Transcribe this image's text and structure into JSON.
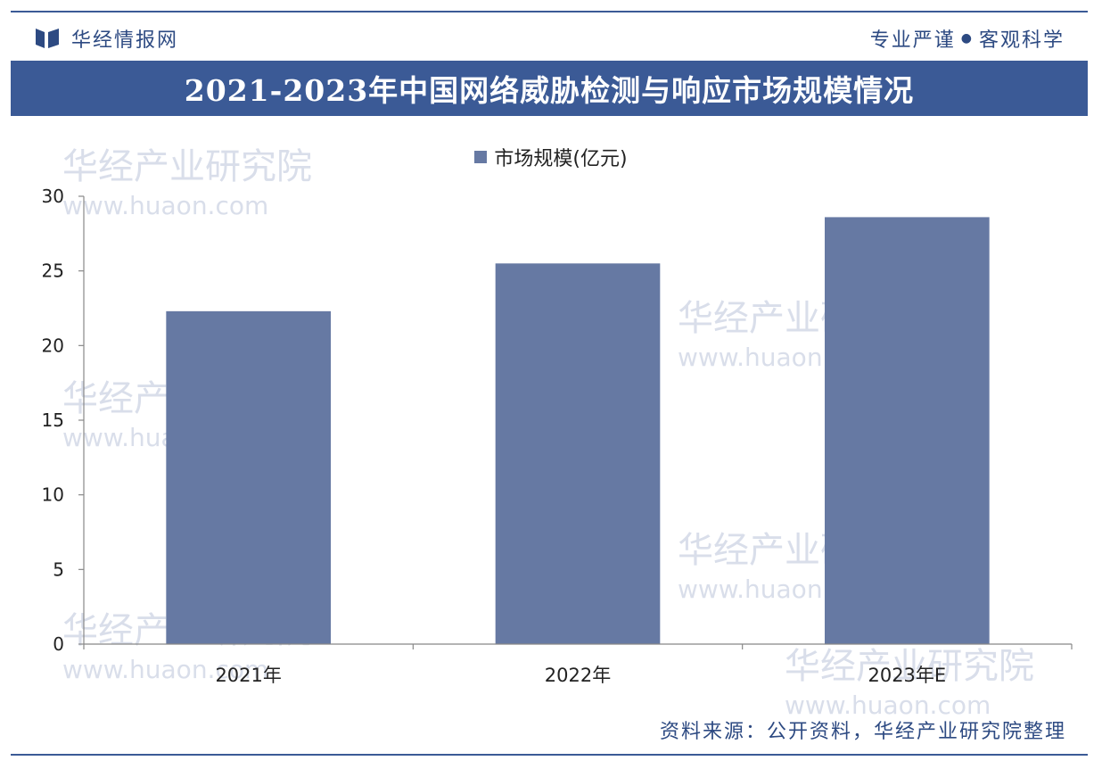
{
  "header": {
    "brand_name": "华经情报网",
    "slogan_left": "专业严谨",
    "slogan_dot": "●",
    "slogan_right": "客观科学"
  },
  "title": "2021-2023年中国网络威胁检测与响应市场规模情况",
  "watermark": {
    "name": "华经产业研究院",
    "url": "www.huaon.com"
  },
  "source": "资料来源：公开资料，华经产业研究院整理",
  "colors": {
    "accent": "#3b5a96",
    "bar": "#6679a3",
    "axis": "#888888"
  },
  "chart_data": {
    "type": "bar",
    "title": "2021-2023年中国网络威胁检测与响应市场规模情况",
    "categories": [
      "2021年",
      "2022年",
      "2023年E"
    ],
    "series": [
      {
        "name": "市场规模(亿元)",
        "values": [
          22.3,
          25.5,
          28.6
        ]
      }
    ],
    "ylim": [
      0,
      30
    ],
    "yticks": [
      0,
      5,
      10,
      15,
      20,
      25,
      30
    ],
    "xlabel": "",
    "ylabel": "",
    "legend": "top-center",
    "grid": false
  }
}
